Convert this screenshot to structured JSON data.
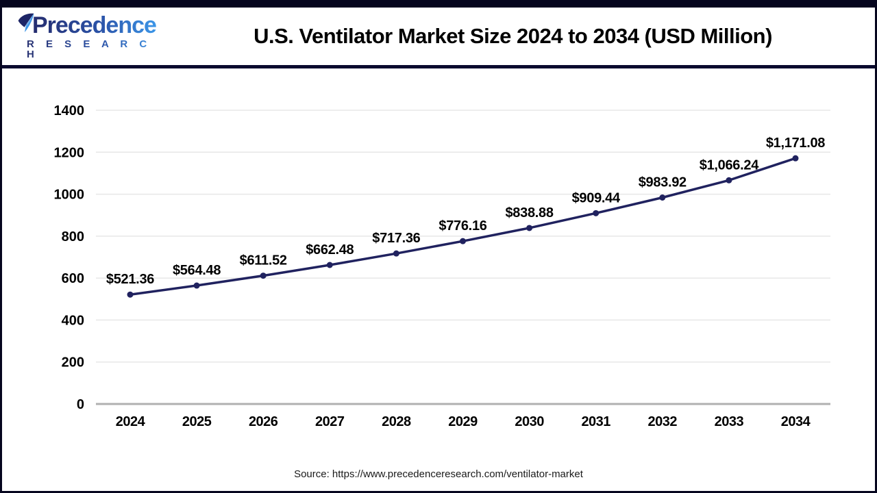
{
  "header": {
    "logo": {
      "name": "Precedence",
      "sub": "R E S E A R C H"
    },
    "title": "U.S. Ventilator Market Size 2024 to 2034 (USD Million)"
  },
  "chart_data": {
    "type": "line",
    "title": "U.S. Ventilator Market Size 2024 to 2034 (USD Million)",
    "categories": [
      "2024",
      "2025",
      "2026",
      "2027",
      "2028",
      "2029",
      "2030",
      "2031",
      "2032",
      "2033",
      "2034"
    ],
    "series": [
      {
        "name": "U.S. Ventilator Market Size (USD Million)",
        "values": [
          521.36,
          564.48,
          611.52,
          662.48,
          717.36,
          776.16,
          838.88,
          909.44,
          983.92,
          1066.24,
          1171.08
        ],
        "labels": [
          "$521.36",
          "$564.48",
          "$611.52",
          "$662.48",
          "$717.36",
          "$776.16",
          "$838.88",
          "$909.44",
          "$983.92",
          "$1,066.24",
          "$1,171.08"
        ]
      }
    ],
    "xlabel": "",
    "ylabel": "",
    "ylim": [
      0,
      1400
    ],
    "y_ticks": [
      0,
      200,
      400,
      600,
      800,
      1000,
      1200,
      1400
    ],
    "grid": "horizontal",
    "legend_position": "none",
    "line_color": "#20225f",
    "marker": "circle",
    "gridline_color": "#e7e7e7",
    "axis_line_color": "#b0b0b0",
    "tick_label_color": "#000000",
    "data_label_color": "#000000"
  },
  "footer": {
    "source": "Source: https://www.precedenceresearch.com/ventilator-market"
  }
}
